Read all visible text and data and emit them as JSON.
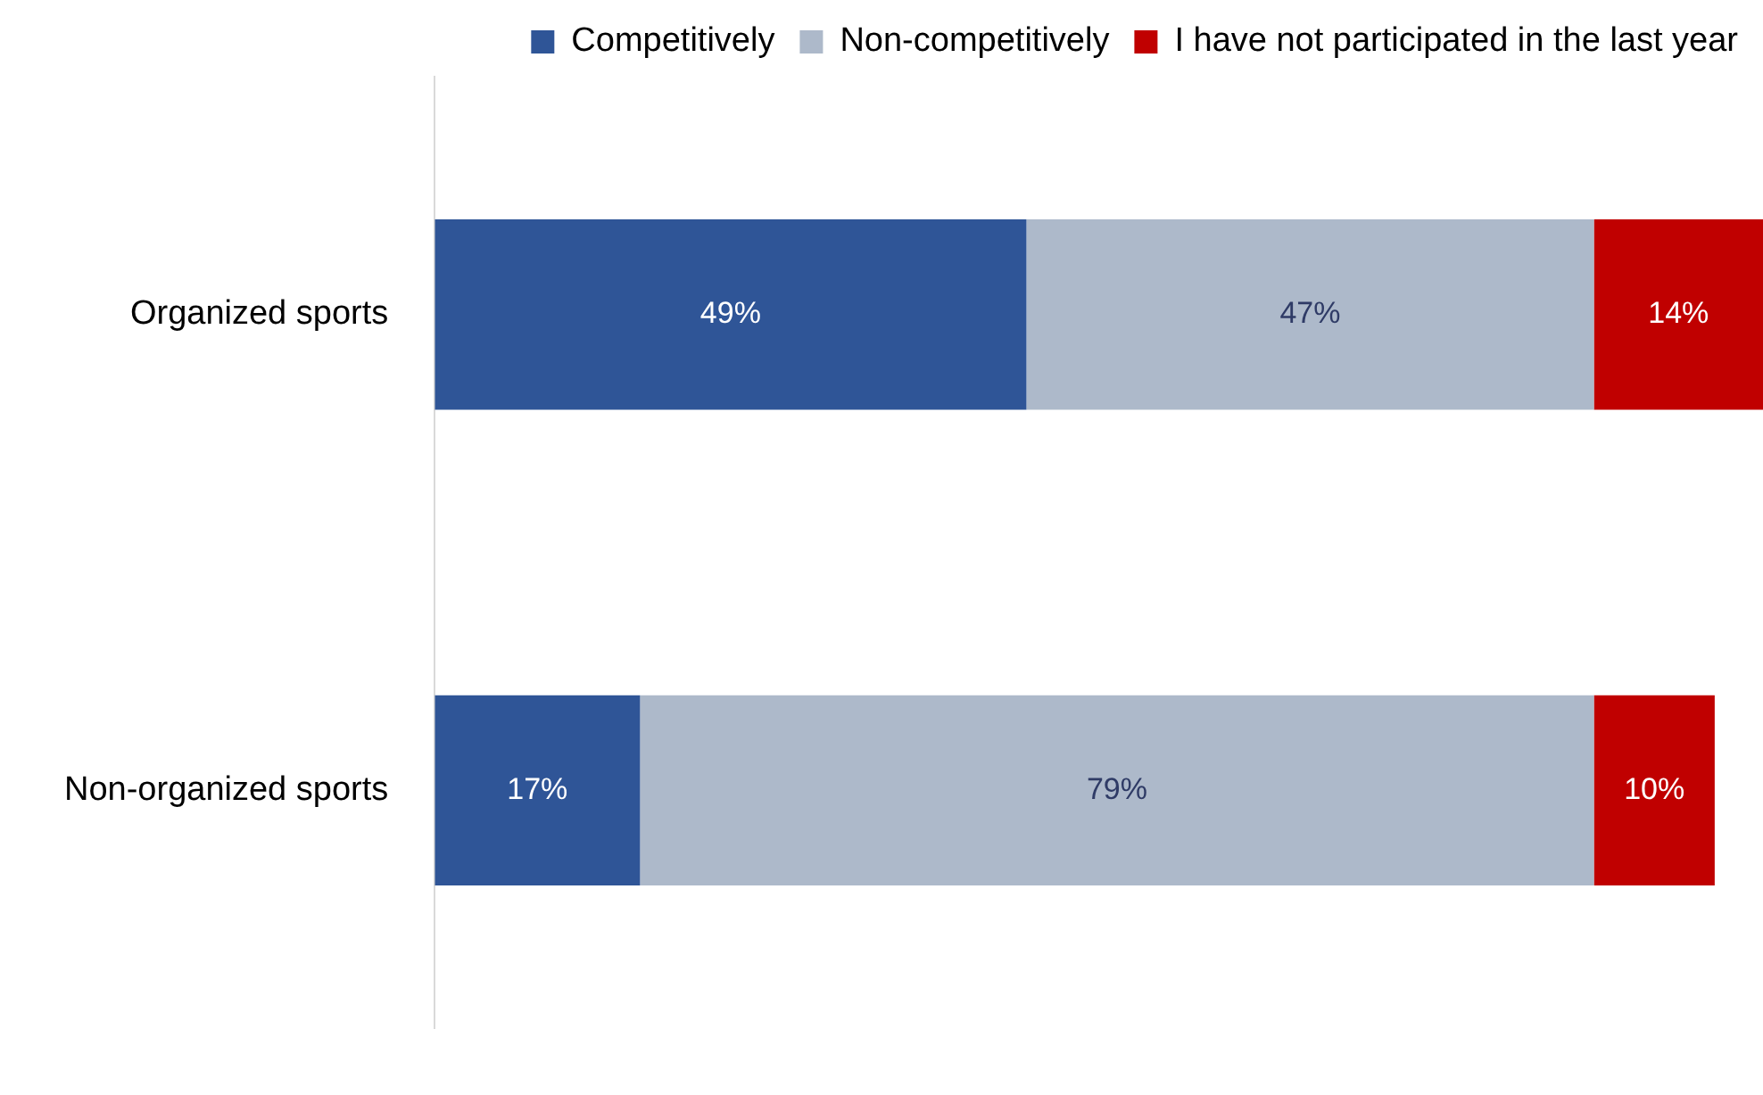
{
  "chart_data": {
    "type": "bar",
    "orientation": "horizontal",
    "stacked": true,
    "categories": [
      "Organized sports",
      "Non-organized sports"
    ],
    "series": [
      {
        "name": "Competitively",
        "color": "#2f5597",
        "values": [
          49,
          17
        ],
        "value_labels": [
          "49%",
          "17%"
        ]
      },
      {
        "name": "Non-competitively",
        "color": "#adb9ca",
        "values": [
          47,
          79
        ],
        "value_labels": [
          "47%",
          "79%"
        ]
      },
      {
        "name": "I have not participated in the last year",
        "color": "#c00000",
        "values": [
          14,
          10
        ],
        "value_labels": [
          "14%",
          "10%"
        ]
      }
    ],
    "xlim": [
      0,
      110
    ],
    "tick_labels": "y",
    "grid": false,
    "legend": "top"
  }
}
